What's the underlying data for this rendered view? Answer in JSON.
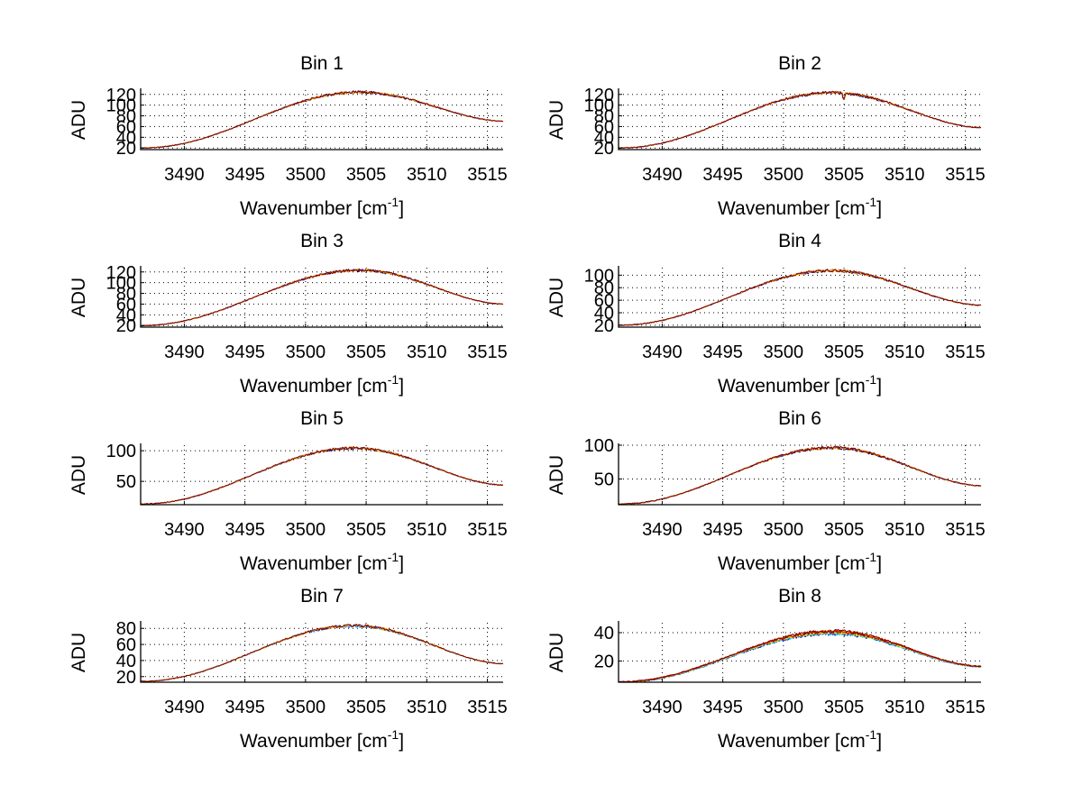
{
  "chart_data": [
    {
      "type": "line",
      "title": "Bin 1",
      "xlabel": "Wavenumber [cm",
      "xlabel_sup": "-1",
      "xlabel_close": "]",
      "ylabel": "ADU",
      "xlim": [
        3486.4,
        3516.3
      ],
      "ylim": [
        17,
        128
      ],
      "xticks": [
        3490,
        3495,
        3500,
        3505,
        3510,
        3515
      ],
      "yticks": [
        20,
        40,
        60,
        80,
        100,
        120
      ],
      "grid": true,
      "profile": {
        "start": 20,
        "peak": 124,
        "peak_x": 3504.5,
        "end": 70,
        "noise": 2.2,
        "dip_x": null
      },
      "series": [
        {
          "name": "s1",
          "color": "#00008f",
          "offset": 0
        },
        {
          "name": "s2",
          "color": "#ffb000",
          "offset": 0.3
        },
        {
          "name": "s3",
          "color": "#800000",
          "offset": 0.5
        }
      ]
    },
    {
      "type": "line",
      "title": "Bin 2",
      "xlabel": "Wavenumber [cm",
      "xlabel_sup": "-1",
      "xlabel_close": "]",
      "ylabel": "ADU",
      "xlim": [
        3486.4,
        3516.3
      ],
      "ylim": [
        17,
        128
      ],
      "xticks": [
        3490,
        3495,
        3500,
        3505,
        3510,
        3515
      ],
      "yticks": [
        20,
        40,
        60,
        80,
        100,
        120
      ],
      "grid": true,
      "profile": {
        "start": 20,
        "peak": 123,
        "peak_x": 3504,
        "end": 58,
        "noise": 2.4,
        "dip_x": 3505
      },
      "series": [
        {
          "name": "s1",
          "color": "#00008f",
          "offset": 0
        },
        {
          "name": "s2",
          "color": "#ffb000",
          "offset": 0.3
        },
        {
          "name": "s3",
          "color": "#800000",
          "offset": 0.5
        }
      ]
    },
    {
      "type": "line",
      "title": "Bin 3",
      "xlabel": "Wavenumber [cm",
      "xlabel_sup": "-1",
      "xlabel_close": "]",
      "ylabel": "ADU",
      "xlim": [
        3486.4,
        3516.3
      ],
      "ylim": [
        17,
        128
      ],
      "xticks": [
        3490,
        3495,
        3500,
        3505,
        3510,
        3515
      ],
      "yticks": [
        20,
        40,
        60,
        80,
        100,
        120
      ],
      "grid": true,
      "profile": {
        "start": 20,
        "peak": 123,
        "peak_x": 3504.5,
        "end": 60,
        "noise": 2.2,
        "dip_x": null
      },
      "series": [
        {
          "name": "s1",
          "color": "#00008f",
          "offset": 0
        },
        {
          "name": "s2",
          "color": "#ffb000",
          "offset": 0.3
        },
        {
          "name": "s3",
          "color": "#800000",
          "offset": 0.5
        }
      ]
    },
    {
      "type": "line",
      "title": "Bin 4",
      "xlabel": "Wavenumber [cm",
      "xlabel_sup": "-1",
      "xlabel_close": "]",
      "ylabel": "ADU",
      "xlim": [
        3486.4,
        3516.3
      ],
      "ylim": [
        17,
        112
      ],
      "xticks": [
        3490,
        3495,
        3500,
        3505,
        3510,
        3515
      ],
      "yticks": [
        20,
        40,
        60,
        80,
        100
      ],
      "grid": true,
      "profile": {
        "start": 20,
        "peak": 107,
        "peak_x": 3504,
        "end": 52,
        "noise": 2,
        "dip_x": null
      },
      "series": [
        {
          "name": "s1",
          "color": "#00008f",
          "offset": 0
        },
        {
          "name": "s2",
          "color": "#ffb000",
          "offset": 0.3
        },
        {
          "name": "s3",
          "color": "#800000",
          "offset": 0.5
        }
      ]
    },
    {
      "type": "line",
      "title": "Bin 5",
      "xlabel": "Wavenumber [cm",
      "xlabel_sup": "-1",
      "xlabel_close": "]",
      "ylabel": "ADU",
      "xlim": [
        3486.4,
        3516.3
      ],
      "ylim": [
        12,
        109
      ],
      "xticks": [
        3490,
        3495,
        3500,
        3505,
        3510,
        3515
      ],
      "yticks": [
        50,
        100
      ],
      "grid": true,
      "profile": {
        "start": 13,
        "peak": 104,
        "peak_x": 3504,
        "end": 44,
        "noise": 2,
        "dip_x": null
      },
      "series": [
        {
          "name": "s1",
          "color": "#00008f",
          "offset": 0
        },
        {
          "name": "s2",
          "color": "#ffb000",
          "offset": 0.3
        },
        {
          "name": "s3",
          "color": "#800000",
          "offset": 0.5
        }
      ]
    },
    {
      "type": "line",
      "title": "Bin 6",
      "xlabel": "Wavenumber [cm",
      "xlabel_sup": "-1",
      "xlabel_close": "]",
      "ylabel": "ADU",
      "xlim": [
        3486.4,
        3516.3
      ],
      "ylim": [
        12,
        100
      ],
      "xticks": [
        3490,
        3495,
        3500,
        3505,
        3510,
        3515
      ],
      "yticks": [
        50,
        100
      ],
      "grid": true,
      "profile": {
        "start": 13,
        "peak": 96,
        "peak_x": 3504,
        "end": 40,
        "noise": 2,
        "dip_x": null
      },
      "series": [
        {
          "name": "s1",
          "color": "#00008f",
          "offset": 0
        },
        {
          "name": "s2",
          "color": "#ffb000",
          "offset": 0.3
        },
        {
          "name": "s3",
          "color": "#800000",
          "offset": 0.5
        }
      ]
    },
    {
      "type": "line",
      "title": "Bin 7",
      "xlabel": "Wavenumber [cm",
      "xlabel_sup": "-1",
      "xlabel_close": "]",
      "ylabel": "ADU",
      "xlim": [
        3486.4,
        3516.3
      ],
      "ylim": [
        13,
        87
      ],
      "xticks": [
        3490,
        3495,
        3500,
        3505,
        3510,
        3515
      ],
      "yticks": [
        20,
        40,
        60,
        80
      ],
      "grid": true,
      "profile": {
        "start": 14,
        "peak": 83,
        "peak_x": 3504,
        "end": 36,
        "noise": 1.6,
        "dip_x": null
      },
      "series": [
        {
          "name": "s1",
          "color": "#0080ff",
          "offset": 0
        },
        {
          "name": "s2",
          "color": "#ffb000",
          "offset": 0.3
        },
        {
          "name": "s3",
          "color": "#800000",
          "offset": 0.5
        }
      ]
    },
    {
      "type": "line",
      "title": "Bin 8",
      "xlabel": "Wavenumber [cm",
      "xlabel_sup": "-1",
      "xlabel_close": "]",
      "ylabel": "ADU",
      "xlim": [
        3486.4,
        3516.3
      ],
      "ylim": [
        5,
        47
      ],
      "xticks": [
        3490,
        3495,
        3500,
        3505,
        3510,
        3515
      ],
      "yticks": [
        20,
        40
      ],
      "grid": true,
      "profile": {
        "start": 5,
        "peak": 40,
        "peak_x": 3504,
        "end": 16,
        "noise": 1.2,
        "dip_x": null
      },
      "series": [
        {
          "name": "s1",
          "color": "#00008f",
          "offset": -0.6
        },
        {
          "name": "s2",
          "color": "#0080ff",
          "offset": -0.2
        },
        {
          "name": "s3",
          "color": "#00e0e0",
          "offset": 0.0
        },
        {
          "name": "s4",
          "color": "#80ff80",
          "offset": 0.2
        },
        {
          "name": "s5",
          "color": "#ffff00",
          "offset": 0.4
        },
        {
          "name": "s6",
          "color": "#ff8000",
          "offset": 0.6
        },
        {
          "name": "s7",
          "color": "#c00000",
          "offset": 0.8
        },
        {
          "name": "s8",
          "color": "#800000",
          "offset": 1.0
        }
      ]
    }
  ]
}
